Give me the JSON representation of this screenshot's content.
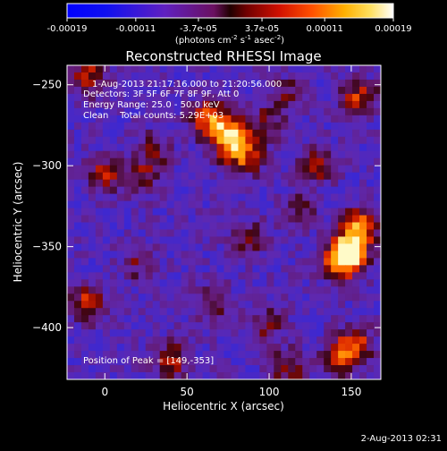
{
  "chart_data": {
    "type": "heatmap",
    "title": "Reconstructed RHESSI Image",
    "xlabel": "Heliocentric X (arcsec)",
    "ylabel": "Heliocentric Y (arcsec)",
    "xlim": [
      -23,
      168
    ],
    "ylim": [
      -432,
      -238
    ],
    "x_ticks": [
      0,
      50,
      100,
      150
    ],
    "y_ticks": [
      -250,
      -300,
      -350,
      -400
    ],
    "colorbar": {
      "ticks": [
        -0.00019,
        -0.00011,
        -3.7e-05,
        3.7e-05,
        0.00011,
        0.00019
      ],
      "tick_labels": [
        "-0.00019",
        "-0.00011",
        "-3.7e-05",
        "3.7e-05",
        "0.00011",
        "0.00019"
      ],
      "range": [
        -0.00019,
        0.00019
      ],
      "unit_label_parts": [
        "(photons cm",
        "-2",
        " s",
        "-1",
        " asec",
        "-2",
        ")"
      ]
    },
    "annotations": [
      "1-Aug-2013 21:17:16.000 to 21:20:56.000",
      "Detectors: 3F 5F 6F 7F 8F 9F, Att 0",
      "Energy Range: 25.0 - 50.0 keV",
      "Clean    Total counts: 5.29E+03"
    ],
    "peak_label": "Position of Peak = [149,-353]",
    "peak_position": [
      149,
      -353
    ],
    "sources": [
      {
        "x": 149,
        "y": -353,
        "amp": 1.0
      },
      {
        "x": 155,
        "y": -338,
        "amp": 0.75
      },
      {
        "x": 143,
        "y": -360,
        "amp": 0.65
      },
      {
        "x": 75,
        "y": -282,
        "amp": 0.95
      },
      {
        "x": 63,
        "y": -270,
        "amp": 0.7
      },
      {
        "x": 85,
        "y": -295,
        "amp": 0.6
      },
      {
        "x": 97,
        "y": -275,
        "amp": 0.4
      },
      {
        "x": 155,
        "y": -258,
        "amp": 0.55
      },
      {
        "x": 130,
        "y": -300,
        "amp": 0.45
      },
      {
        "x": 152,
        "y": -410,
        "amp": 0.6
      },
      {
        "x": 143,
        "y": -420,
        "amp": 0.45
      },
      {
        "x": -10,
        "y": -385,
        "amp": 0.55
      },
      {
        "x": 0,
        "y": -305,
        "amp": 0.45
      },
      {
        "x": 22,
        "y": -308,
        "amp": 0.4
      },
      {
        "x": 30,
        "y": -290,
        "amp": 0.35
      },
      {
        "x": -10,
        "y": -245,
        "amp": 0.5
      },
      {
        "x": 40,
        "y": -420,
        "amp": 0.5
      },
      {
        "x": 65,
        "y": -385,
        "amp": 0.4
      },
      {
        "x": 88,
        "y": -345,
        "amp": 0.35
      },
      {
        "x": 98,
        "y": -398,
        "amp": 0.35
      },
      {
        "x": 112,
        "y": -425,
        "amp": 0.45
      },
      {
        "x": 118,
        "y": -328,
        "amp": 0.3
      },
      {
        "x": 20,
        "y": -360,
        "amp": 0.3
      },
      {
        "x": 110,
        "y": -255,
        "amp": 0.3
      }
    ],
    "grid": false
  },
  "footer": {
    "date": "2-Aug-2013 02:31"
  }
}
